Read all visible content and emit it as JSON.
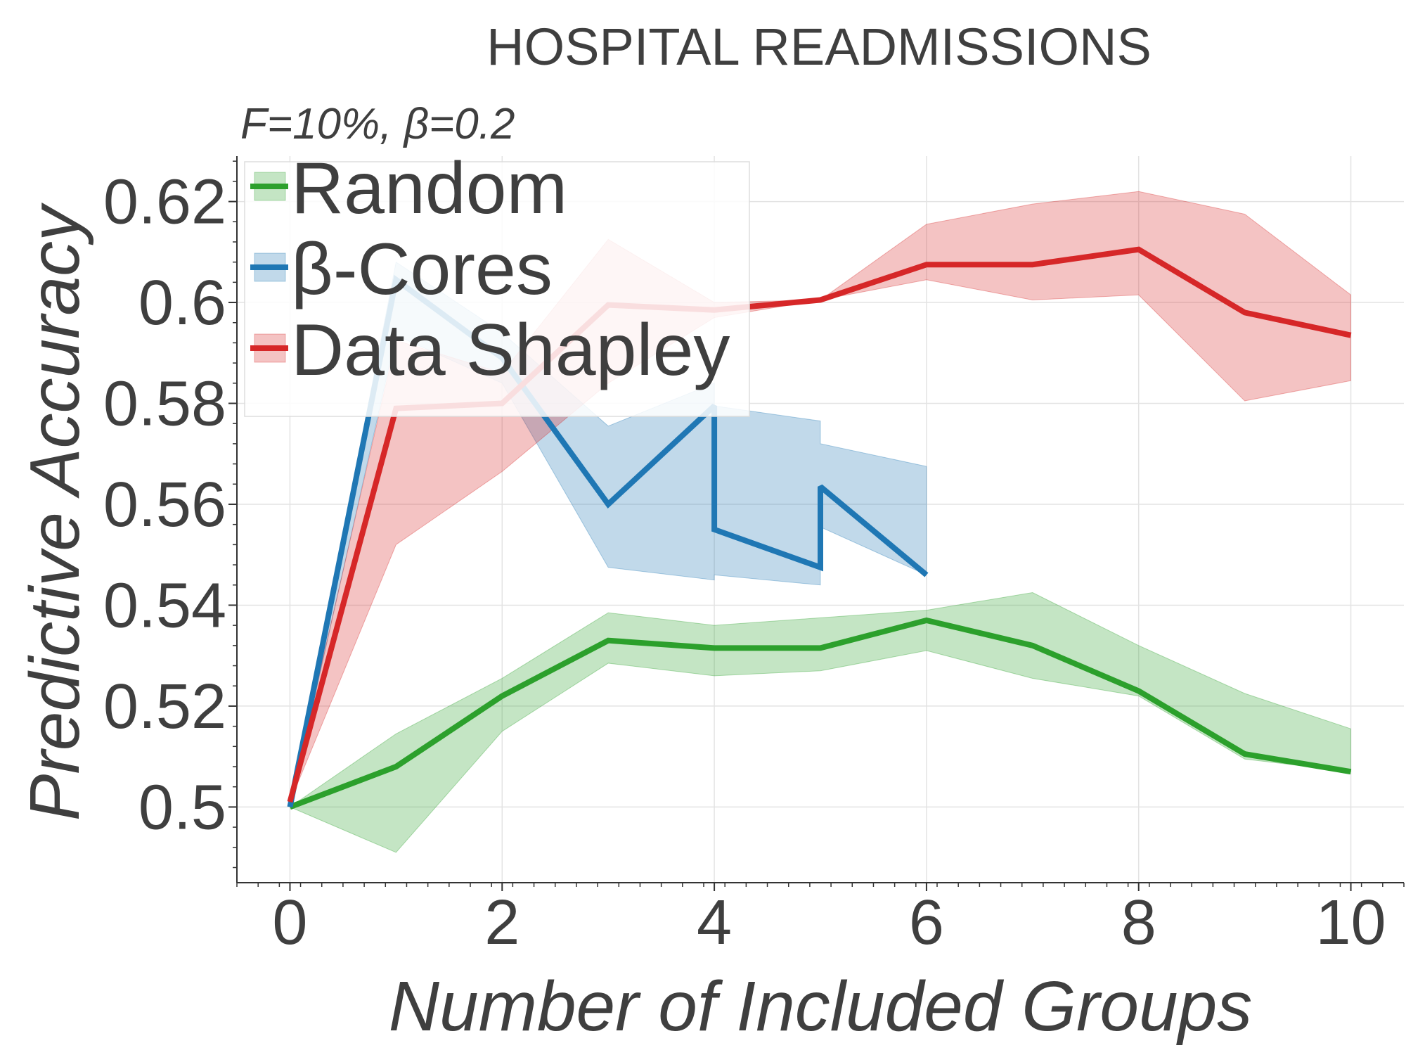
{
  "chart_data": {
    "type": "line",
    "title": "HOSPITAL READMISSIONS",
    "subtitle": "F=10%,  β=0.2",
    "xlabel": "Number of Included Groups",
    "ylabel": "Predictive Accuracy",
    "xlim": [
      -0.5,
      10.5
    ],
    "ylim": [
      0.485,
      0.629
    ],
    "x_ticks": [
      0,
      2,
      4,
      6,
      8,
      10
    ],
    "x_tick_labels": [
      "0",
      "2",
      "4",
      "6",
      "8",
      "10"
    ],
    "y_ticks": [
      0.5,
      0.52,
      0.54,
      0.56,
      0.58,
      0.6,
      0.62
    ],
    "y_tick_labels": [
      "0.5",
      "0.52",
      "0.54",
      "0.56",
      "0.58",
      "0.6",
      "0.62"
    ],
    "grid": true,
    "legend_position": "top-left",
    "series": [
      {
        "name": "Random",
        "color": "#2ca02c",
        "x": [
          0,
          1,
          2,
          3,
          4,
          5,
          6,
          7,
          8,
          9,
          10
        ],
        "y": [
          0.5,
          0.508,
          0.522,
          0.533,
          0.5315,
          0.5315,
          0.537,
          0.532,
          0.523,
          0.5105,
          0.507
        ],
        "lower": [
          0.5,
          0.491,
          0.515,
          0.5285,
          0.526,
          0.527,
          0.531,
          0.5255,
          0.522,
          0.5095,
          0.507
        ],
        "upper": [
          0.5,
          0.5145,
          0.5255,
          0.5385,
          0.536,
          0.5375,
          0.539,
          0.5425,
          0.532,
          0.5225,
          0.5155
        ]
      },
      {
        "name": "β-Cores",
        "color": "#1f77b4",
        "x": [
          0,
          1,
          2,
          3,
          4,
          4,
          5,
          5,
          6
        ],
        "y": [
          0.5,
          0.6045,
          0.589,
          0.56,
          0.5795,
          0.555,
          0.5475,
          0.5635,
          0.546
        ],
        "lower": [
          0.5,
          0.5935,
          0.584,
          0.5475,
          0.545,
          0.546,
          0.544,
          0.5555,
          0.546
        ],
        "upper": [
          0.5,
          0.608,
          0.594,
          0.5755,
          0.584,
          0.5795,
          0.5765,
          0.572,
          0.5675
        ]
      },
      {
        "name": "Data Shapley",
        "color": "#d62728",
        "x": [
          0,
          1,
          2,
          3,
          4,
          5,
          6,
          7,
          8,
          9,
          10
        ],
        "y": [
          0.501,
          0.579,
          0.58,
          0.5995,
          0.5985,
          0.6005,
          0.6075,
          0.6075,
          0.6105,
          0.598,
          0.5935
        ],
        "lower": [
          0.501,
          0.552,
          0.5665,
          0.584,
          0.597,
          0.6005,
          0.6045,
          0.6005,
          0.6015,
          0.5805,
          0.5845
        ],
        "upper": [
          0.501,
          0.5925,
          0.586,
          0.6125,
          0.6,
          0.6005,
          0.6155,
          0.6195,
          0.622,
          0.6175,
          0.6015
        ]
      }
    ]
  }
}
